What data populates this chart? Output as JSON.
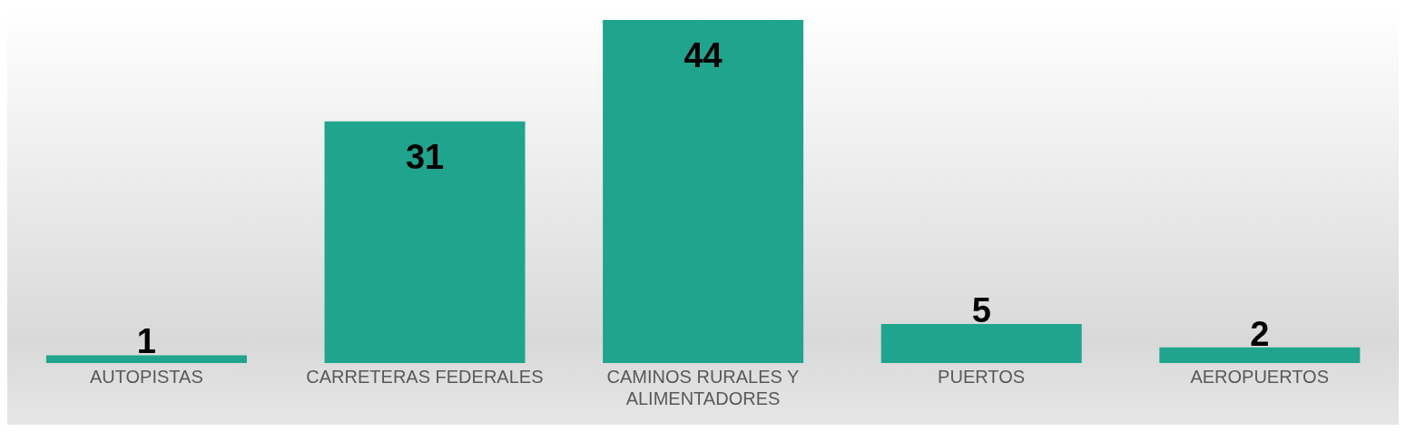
{
  "chart_data": {
    "type": "bar",
    "data_labels": true,
    "categories": [
      "AUTOPISTAS",
      "CARRETERAS FEDERALES",
      "CAMINOS RURALES Y ALIMENTADORES",
      "PUERTOS",
      "AEROPUERTOS"
    ],
    "values": [
      1,
      31,
      44,
      5,
      2
    ],
    "color": "#1fa58e"
  }
}
